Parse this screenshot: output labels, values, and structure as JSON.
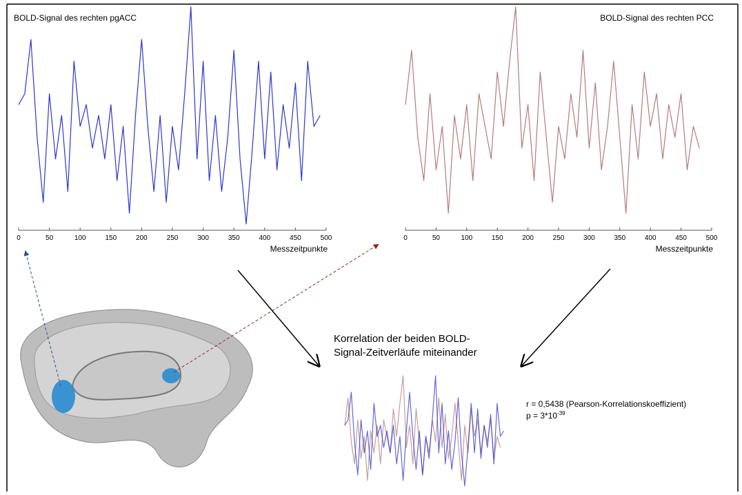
{
  "chart_data": [
    {
      "type": "line",
      "title": "BOLD-Signal des rechten pgACC",
      "x_label": "Messzeitpunkte",
      "color": "#2b36c9",
      "xlim": [
        0,
        500
      ],
      "xticks": [
        0,
        50,
        100,
        150,
        200,
        250,
        300,
        350,
        400,
        450,
        500
      ],
      "ylim": [
        0,
        100
      ],
      "x": [
        0,
        10,
        20,
        30,
        40,
        50,
        60,
        70,
        80,
        90,
        100,
        110,
        120,
        130,
        140,
        150,
        160,
        170,
        180,
        190,
        200,
        210,
        220,
        230,
        240,
        250,
        260,
        270,
        280,
        290,
        300,
        310,
        320,
        330,
        340,
        350,
        360,
        370,
        380,
        390,
        400,
        410,
        420,
        430,
        440,
        450,
        460,
        470,
        480,
        490
      ],
      "values": [
        55,
        60,
        85,
        40,
        10,
        60,
        30,
        50,
        15,
        75,
        45,
        55,
        35,
        50,
        30,
        55,
        20,
        45,
        5,
        50,
        85,
        45,
        15,
        50,
        10,
        45,
        25,
        60,
        100,
        30,
        75,
        20,
        50,
        15,
        40,
        80,
        30,
        0,
        35,
        75,
        30,
        70,
        25,
        55,
        35,
        65,
        20,
        75,
        45,
        50
      ]
    },
    {
      "type": "line",
      "title": "BOLD-Signal des rechten PCC",
      "x_label": "Messzeitpunkte",
      "color": "#b27c7a",
      "xlim": [
        0,
        500
      ],
      "xticks": [
        0,
        50,
        100,
        150,
        200,
        250,
        300,
        350,
        400,
        450,
        500
      ],
      "ylim": [
        0,
        100
      ],
      "x": [
        0,
        10,
        20,
        30,
        40,
        50,
        60,
        70,
        80,
        90,
        100,
        110,
        120,
        130,
        140,
        150,
        160,
        170,
        180,
        190,
        200,
        210,
        220,
        230,
        240,
        250,
        260,
        270,
        280,
        290,
        300,
        310,
        320,
        330,
        340,
        350,
        360,
        370,
        380,
        390,
        400,
        410,
        420,
        430,
        440,
        450,
        460,
        470,
        480
      ],
      "values": [
        55,
        80,
        40,
        20,
        60,
        25,
        45,
        5,
        50,
        30,
        55,
        20,
        60,
        45,
        30,
        70,
        45,
        75,
        100,
        35,
        55,
        20,
        70,
        40,
        10,
        45,
        30,
        60,
        40,
        80,
        35,
        65,
        25,
        45,
        75,
        40,
        5,
        55,
        30,
        70,
        45,
        60,
        30,
        55,
        40,
        60,
        25,
        45,
        35
      ]
    }
  ],
  "correlation": {
    "caption": [
      "Korrelation der beiden BOLD-",
      "Signal-Zeitverläufe miteinander"
    ],
    "r_text": "r = 0,5438 (Pearson-Korrelationskoeffizient)",
    "p_text": "p = 3*10",
    "p_exponent": "-39"
  }
}
